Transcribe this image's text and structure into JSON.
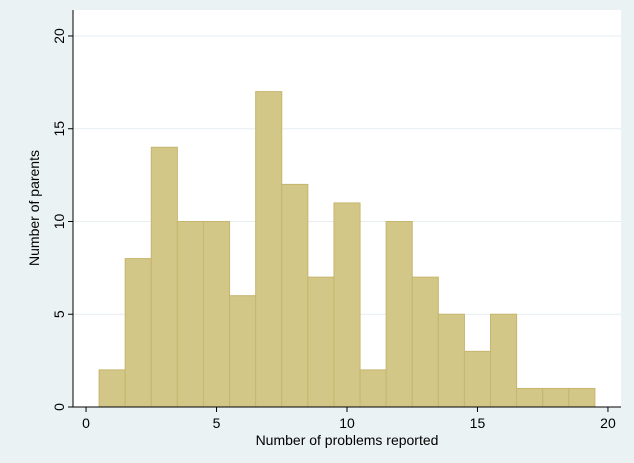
{
  "chart_data": {
    "type": "bar",
    "subtype": "histogram",
    "xlabel": "Number of problems reported",
    "ylabel": "Number of parents",
    "xlim": [
      -0.5,
      20.5
    ],
    "ylim": [
      0,
      21.4
    ],
    "xticks": [
      0,
      5,
      10,
      15,
      20
    ],
    "yticks": [
      0,
      5,
      10,
      15,
      20
    ],
    "grid": "horizontal",
    "bin_width": 1,
    "bins": [
      {
        "start": 0.5,
        "end": 1.5,
        "count": 2
      },
      {
        "start": 1.5,
        "end": 2.5,
        "count": 8
      },
      {
        "start": 2.5,
        "end": 3.5,
        "count": 14
      },
      {
        "start": 3.5,
        "end": 4.5,
        "count": 10
      },
      {
        "start": 4.5,
        "end": 5.5,
        "count": 10
      },
      {
        "start": 5.5,
        "end": 6.5,
        "count": 6
      },
      {
        "start": 6.5,
        "end": 7.5,
        "count": 17
      },
      {
        "start": 7.5,
        "end": 8.5,
        "count": 12
      },
      {
        "start": 8.5,
        "end": 9.5,
        "count": 7
      },
      {
        "start": 9.5,
        "end": 10.5,
        "count": 11
      },
      {
        "start": 10.5,
        "end": 11.5,
        "count": 2
      },
      {
        "start": 11.5,
        "end": 12.5,
        "count": 10
      },
      {
        "start": 12.5,
        "end": 13.5,
        "count": 7
      },
      {
        "start": 13.5,
        "end": 14.5,
        "count": 5
      },
      {
        "start": 14.5,
        "end": 15.5,
        "count": 3
      },
      {
        "start": 15.5,
        "end": 16.5,
        "count": 5
      },
      {
        "start": 16.5,
        "end": 17.5,
        "count": 1
      },
      {
        "start": 17.5,
        "end": 18.5,
        "count": 1
      },
      {
        "start": 18.5,
        "end": 19.5,
        "count": 1
      }
    ],
    "colors": {
      "background": "#eaf2f3",
      "plot_area": "#ffffff",
      "bar_fill": "#d3c788",
      "bar_stroke": "#c6b56e",
      "grid": "#e6eef0"
    }
  }
}
